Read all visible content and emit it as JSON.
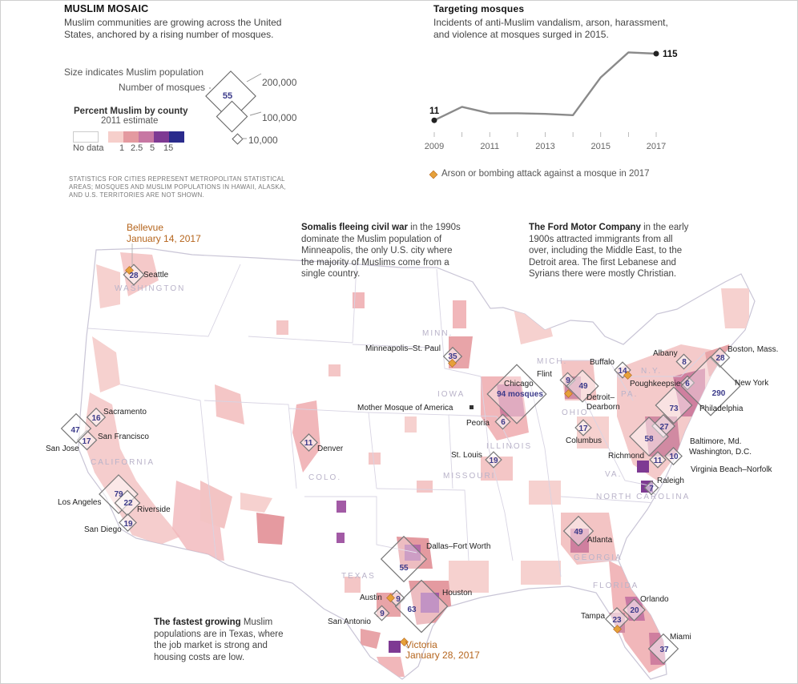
{
  "left_header": {
    "title": "MUSLIM MOSAIC",
    "subtitle_line1": "Muslim communities are growing across the United",
    "subtitle_line2": "States, anchored by a rising number of mosques."
  },
  "legend": {
    "size_label": "Size indicates Muslim population",
    "mosque_label": "Number of mosques",
    "sample_mosques": "55",
    "pop_200k": "200,000",
    "pop_100k": "100,000",
    "pop_10k": "10,000",
    "percent_title": "Percent Muslim by county",
    "percent_sub": "2011 estimate",
    "no_data": "No data",
    "ticks": [
      "1",
      "2.5",
      "5",
      "15"
    ],
    "colors": [
      "#f6cfcb",
      "#e49aa0",
      "#c777a3",
      "#7e3a93",
      "#2a2b8c"
    ]
  },
  "footnote": {
    "line1": "STATISTICS FOR CITIES REPRESENT METROPOLITAN STATISTICAL",
    "line2": "AREAS; MOSQUES AND MUSLIM POPULATIONS IN HAWAII, ALASKA,",
    "line3": "AND U.S. TERRITORIES ARE NOT SHOWN."
  },
  "incidents": {
    "title": "Targeting mosques",
    "subtitle_line1": "Incidents of anti-Muslim vandalism, arson, harassment,",
    "subtitle_line2": "and violence at mosques surged in 2015.",
    "start_label": "11",
    "end_label": "115",
    "x_ticks": [
      "2009",
      "2011",
      "2013",
      "2015",
      "2017"
    ],
    "arson_legend": "Arson or bombing attack against a mosque in 2017"
  },
  "chart_data": {
    "type": "line",
    "x": [
      2009,
      2010,
      2011,
      2012,
      2013,
      2014,
      2015,
      2016,
      2017
    ],
    "values": [
      11,
      32,
      22,
      22,
      21,
      19,
      78,
      117,
      115
    ],
    "xlim": [
      2009,
      2017
    ],
    "ylim": [
      0,
      120
    ]
  },
  "annotations": {
    "bellevue_line1": "Bellevue",
    "bellevue_line2": "January 14, 2017",
    "somali_bold": "Somalis fleeing civil war",
    "somali_rest1": " in the 1990s",
    "somali_line2": "dominate the Muslim population of",
    "somali_line3": "Minneapolis, the only U.S. city where",
    "somali_line4": "the majority of Muslims come from a",
    "somali_line5": "single country.",
    "ford_bold": "The Ford Motor Company",
    "ford_rest1": " in the early",
    "ford_line2": "1900s attracted immigrants from all",
    "ford_line3": "over, including the Middle East, to the",
    "ford_line4": "Detroit area. The first Lebanese and",
    "ford_line5": "Syrians there were mostly Christian.",
    "texas_bold": "The fastest growing",
    "texas_rest1": " Muslim",
    "texas_line2": "populations are in Texas, where",
    "texas_line3": "the job market is strong and",
    "texas_line4": "housing costs are low.",
    "victoria_line1": "Victoria",
    "victoria_line2": "January 28, 2017",
    "mother_mosque": "Mother Mosque of America"
  },
  "states": [
    "WASHINGTON",
    "CALIFORNIA",
    "COLO.",
    "TEXAS",
    "MINN.",
    "IOWA",
    "ILLINOIS",
    "MISSOURI",
    "MICH.",
    "OHIO",
    "N.Y.",
    "PA.",
    "VA.",
    "NORTH CAROLINA",
    "GEORGIA",
    "FLORIDA"
  ],
  "metros": [
    {
      "name": "Seattle",
      "mosques": "28"
    },
    {
      "name": "Sacramento",
      "mosques": "16"
    },
    {
      "name": "San Francisco",
      "mosques": "17"
    },
    {
      "name": "San Jose",
      "mosques": "47"
    },
    {
      "name": "Los Angeles",
      "mosques": "79"
    },
    {
      "name": "Riverside",
      "mosques": "22"
    },
    {
      "name": "San Diego",
      "mosques": "19"
    },
    {
      "name": "Denver",
      "mosques": "11"
    },
    {
      "name": "Minneapolis–St. Paul",
      "mosques": "35"
    },
    {
      "name": "Chicago",
      "mosques": "94 mosques"
    },
    {
      "name": "Peoria",
      "mosques": "6"
    },
    {
      "name": "St. Louis",
      "mosques": "19"
    },
    {
      "name": "Flint",
      "mosques": "9"
    },
    {
      "name": "Detroit–Dearborn",
      "mosques": "49"
    },
    {
      "name": "Columbus",
      "mosques": "17"
    },
    {
      "name": "Buffalo",
      "mosques": "14"
    },
    {
      "name": "Albany",
      "mosques": "8"
    },
    {
      "name": "Boston, Mass.",
      "mosques": "28"
    },
    {
      "name": "Poughkeepsie",
      "mosques": "6"
    },
    {
      "name": "New York",
      "mosques": "290"
    },
    {
      "name": "Philadelphia",
      "mosques": "73"
    },
    {
      "name": "Baltimore, Md.",
      "mosques": "27"
    },
    {
      "name": "Washington, D.C.",
      "mosques": "58"
    },
    {
      "name": "Richmond",
      "mosques": "11"
    },
    {
      "name": "Virginia Beach–Norfolk",
      "mosques": "10"
    },
    {
      "name": "Raleigh",
      "mosques": "7"
    },
    {
      "name": "Atlanta",
      "mosques": "49"
    },
    {
      "name": "Dallas–Fort Worth",
      "mosques": "55"
    },
    {
      "name": "Austin",
      "mosques": "9"
    },
    {
      "name": "Houston",
      "mosques": "63"
    },
    {
      "name": "San Antonio",
      "mosques": "9"
    },
    {
      "name": "Orlando",
      "mosques": "20"
    },
    {
      "name": "Tampa",
      "mosques": "23"
    },
    {
      "name": "Miami",
      "mosques": "37"
    }
  ]
}
